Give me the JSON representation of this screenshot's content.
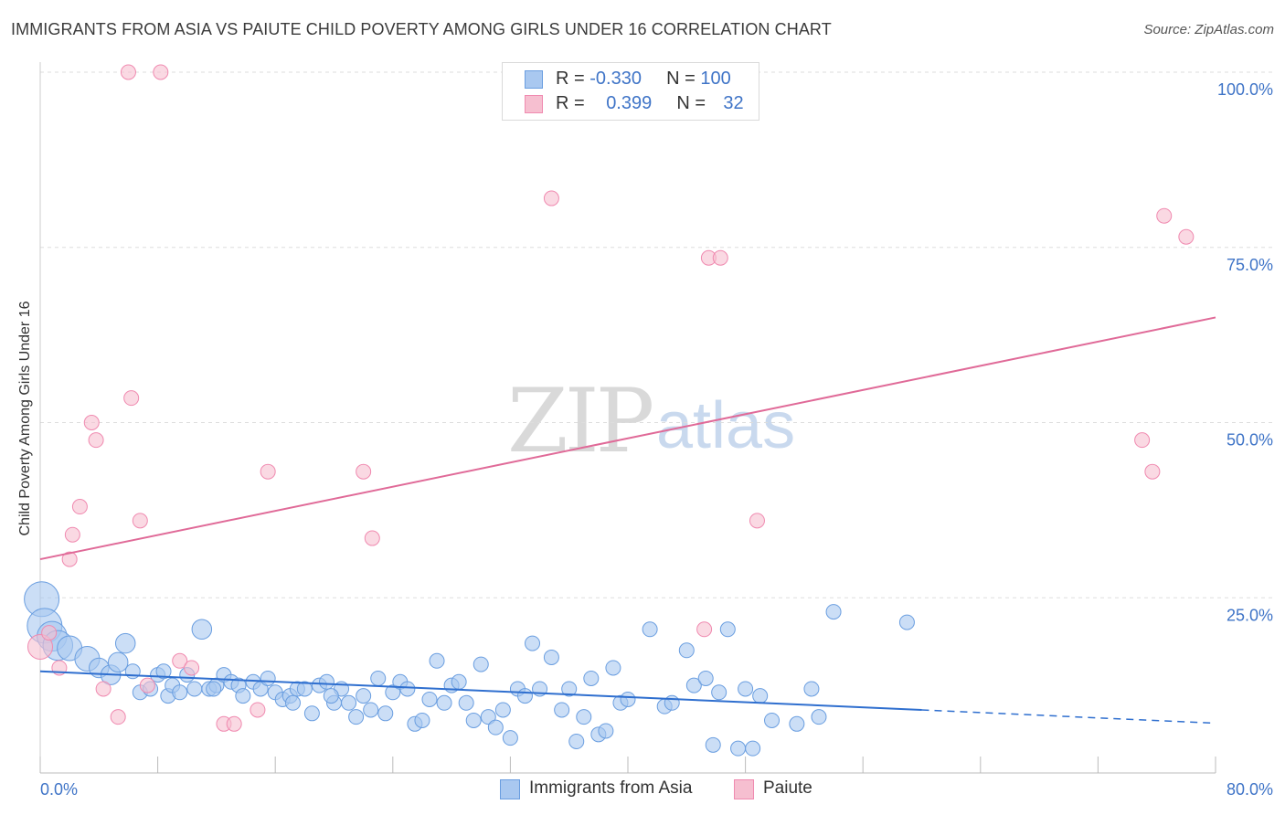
{
  "header": {
    "title": "IMMIGRANTS FROM ASIA VS PAIUTE CHILD POVERTY AMONG GIRLS UNDER 16 CORRELATION CHART",
    "source": "Source: ZipAtlas.com"
  },
  "watermark": {
    "zip": "ZIP",
    "atlas": "atlas"
  },
  "legend": {
    "rows": [
      {
        "r_label": "R = ",
        "r_value": "-0.330",
        "n_label": "N = ",
        "n_value": "100",
        "color": "#a9c8f0"
      },
      {
        "r_label": "R = ",
        "r_value": "0.399",
        "n_label": "N = ",
        "n_value": "32",
        "color": "#f6bfd0"
      }
    ]
  },
  "bottom_legend": {
    "series1": "Immigrants from Asia",
    "series2": "Paiute"
  },
  "chart_data": {
    "type": "scatter",
    "title": "IMMIGRANTS FROM ASIA VS PAIUTE CHILD POVERTY AMONG GIRLS UNDER 16 CORRELATION CHART",
    "xlabel": "",
    "ylabel": "Child Poverty Among Girls Under 16",
    "xlim": [
      0,
      80
    ],
    "ylim": [
      0,
      100
    ],
    "x_tick_labels": [
      "0.0%",
      "80.0%"
    ],
    "y_tick_labels": [
      "100.0%",
      "75.0%",
      "50.0%",
      "25.0%"
    ],
    "y_ticks": [
      100,
      75,
      50,
      25
    ],
    "grid": true,
    "legend_position": "top-center",
    "colors": {
      "blue": "#6a9ee0",
      "blue_fill": "#a9c8f0",
      "blue_line": "#2f6fcf",
      "pink": "#f08ab0",
      "pink_fill": "#f6bfd0",
      "pink_line": "#e06a98",
      "axis_text": "#3f74c7"
    },
    "series": [
      {
        "name": "Immigrants from Asia",
        "color": "#6a9ee0",
        "trend": {
          "x": [
            0,
            60
          ],
          "y": [
            14.5,
            9.0
          ],
          "dashed_to": [
            80,
            7.1
          ]
        },
        "points": [
          [
            0.1,
            24.8,
            3
          ],
          [
            0.3,
            21.0,
            3
          ],
          [
            0.8,
            19.5,
            2.5
          ],
          [
            1.2,
            18.2,
            2.5
          ],
          [
            2.0,
            17.8,
            2
          ],
          [
            3.2,
            16.3,
            2
          ],
          [
            4.0,
            15.0,
            1.5
          ],
          [
            4.8,
            14.0,
            1.5
          ],
          [
            5.3,
            15.8,
            1.5
          ],
          [
            5.8,
            18.5,
            1.5
          ],
          [
            6.3,
            14.5,
            1
          ],
          [
            6.8,
            11.5,
            1
          ],
          [
            7.5,
            12.0,
            1
          ],
          [
            8.0,
            14.0,
            1
          ],
          [
            8.4,
            14.5,
            1
          ],
          [
            8.7,
            11.0,
            1
          ],
          [
            9.0,
            12.5,
            1
          ],
          [
            9.5,
            11.5,
            1
          ],
          [
            10.0,
            14.0,
            1
          ],
          [
            10.5,
            12.0,
            1
          ],
          [
            11.0,
            20.5,
            1.5
          ],
          [
            11.5,
            12.0,
            1
          ],
          [
            12.0,
            12.5,
            1
          ],
          [
            12.5,
            14.0,
            1
          ],
          [
            13.0,
            13.0,
            1
          ],
          [
            13.5,
            12.5,
            1
          ],
          [
            13.8,
            11.0,
            1
          ],
          [
            14.5,
            13.0,
            1
          ],
          [
            15.0,
            12.0,
            1
          ],
          [
            15.5,
            13.5,
            1
          ],
          [
            16.0,
            11.5,
            1
          ],
          [
            16.5,
            10.5,
            1
          ],
          [
            17.0,
            11.0,
            1
          ],
          [
            17.5,
            12.0,
            1
          ],
          [
            18.0,
            12.0,
            1
          ],
          [
            18.5,
            8.5,
            1
          ],
          [
            19.0,
            12.5,
            1
          ],
          [
            19.5,
            13.0,
            1
          ],
          [
            20.0,
            10.0,
            1
          ],
          [
            20.5,
            12.0,
            1
          ],
          [
            21.0,
            10.0,
            1
          ],
          [
            21.5,
            8.0,
            1
          ],
          [
            22.0,
            11.0,
            1
          ],
          [
            22.5,
            9.0,
            1
          ],
          [
            23.0,
            13.5,
            1
          ],
          [
            23.5,
            8.5,
            1
          ],
          [
            24.0,
            11.5,
            1
          ],
          [
            24.5,
            13.0,
            1
          ],
          [
            25.0,
            12.0,
            1
          ],
          [
            25.5,
            7.0,
            1
          ],
          [
            26.0,
            7.5,
            1
          ],
          [
            26.5,
            10.5,
            1
          ],
          [
            27.0,
            16.0,
            1
          ],
          [
            27.5,
            10.0,
            1
          ],
          [
            28.0,
            12.5,
            1
          ],
          [
            28.5,
            13.0,
            1
          ],
          [
            29.0,
            10.0,
            1
          ],
          [
            29.5,
            7.5,
            1
          ],
          [
            30.0,
            15.5,
            1
          ],
          [
            30.5,
            8.0,
            1
          ],
          [
            31.0,
            6.5,
            1
          ],
          [
            31.5,
            9.0,
            1
          ],
          [
            32.0,
            5.0,
            1
          ],
          [
            32.5,
            12.0,
            1
          ],
          [
            33.0,
            11.0,
            1
          ],
          [
            33.5,
            18.5,
            1
          ],
          [
            34.0,
            12.0,
            1
          ],
          [
            34.8,
            16.5,
            1
          ],
          [
            35.5,
            9.0,
            1
          ],
          [
            36.0,
            12.0,
            1
          ],
          [
            36.5,
            4.5,
            1
          ],
          [
            37.0,
            8.0,
            1
          ],
          [
            37.5,
            13.5,
            1
          ],
          [
            38.0,
            5.5,
            1
          ],
          [
            38.5,
            6.0,
            1
          ],
          [
            39.0,
            15.0,
            1
          ],
          [
            39.5,
            10.0,
            1
          ],
          [
            40.0,
            10.5,
            1
          ],
          [
            41.5,
            20.5,
            1
          ],
          [
            42.5,
            9.5,
            1
          ],
          [
            43.0,
            10.0,
            1
          ],
          [
            44.0,
            17.5,
            1
          ],
          [
            44.5,
            12.5,
            1
          ],
          [
            45.3,
            13.5,
            1
          ],
          [
            45.8,
            4.0,
            1
          ],
          [
            46.2,
            11.5,
            1
          ],
          [
            46.8,
            20.5,
            1
          ],
          [
            47.5,
            3.5,
            1
          ],
          [
            48.0,
            12.0,
            1
          ],
          [
            48.5,
            3.5,
            1
          ],
          [
            49.0,
            11.0,
            1
          ],
          [
            49.8,
            7.5,
            1
          ],
          [
            51.5,
            7.0,
            1
          ],
          [
            52.5,
            12.0,
            1
          ],
          [
            53.0,
            8.0,
            1
          ],
          [
            54.0,
            23.0,
            1
          ],
          [
            59.0,
            21.5,
            1
          ],
          [
            11.8,
            12.0,
            1
          ],
          [
            17.2,
            10.0,
            1
          ],
          [
            19.8,
            11.0,
            1
          ]
        ]
      },
      {
        "name": "Paiute",
        "color": "#f08ab0",
        "trend": {
          "x": [
            0,
            80
          ],
          "y": [
            30.5,
            65.0
          ]
        },
        "points": [
          [
            0.0,
            18.0,
            2
          ],
          [
            0.6,
            20.0,
            1
          ],
          [
            1.3,
            15.0,
            1
          ],
          [
            2.0,
            30.5,
            1
          ],
          [
            2.2,
            34.0,
            1
          ],
          [
            2.7,
            38.0,
            1
          ],
          [
            3.5,
            50.0,
            1
          ],
          [
            3.8,
            47.5,
            1
          ],
          [
            4.3,
            12.0,
            1
          ],
          [
            5.3,
            8.0,
            1
          ],
          [
            6.0,
            100.0,
            1
          ],
          [
            6.2,
            53.5,
            1
          ],
          [
            6.8,
            36.0,
            1
          ],
          [
            7.3,
            12.5,
            1
          ],
          [
            8.2,
            100.0,
            1
          ],
          [
            9.5,
            16.0,
            1
          ],
          [
            10.3,
            15.0,
            1
          ],
          [
            12.5,
            7.0,
            1
          ],
          [
            13.2,
            7.0,
            1
          ],
          [
            14.8,
            9.0,
            1
          ],
          [
            15.5,
            43.0,
            1
          ],
          [
            22.0,
            43.0,
            1
          ],
          [
            22.6,
            33.5,
            1
          ],
          [
            34.8,
            82.0,
            1
          ],
          [
            45.2,
            20.5,
            1
          ],
          [
            45.5,
            73.5,
            1
          ],
          [
            46.3,
            73.5,
            1
          ],
          [
            48.8,
            36.0,
            1
          ],
          [
            75.0,
            47.5,
            1
          ],
          [
            75.7,
            43.0,
            1
          ],
          [
            76.5,
            79.5,
            1
          ],
          [
            78.0,
            76.5,
            1
          ]
        ]
      }
    ]
  }
}
